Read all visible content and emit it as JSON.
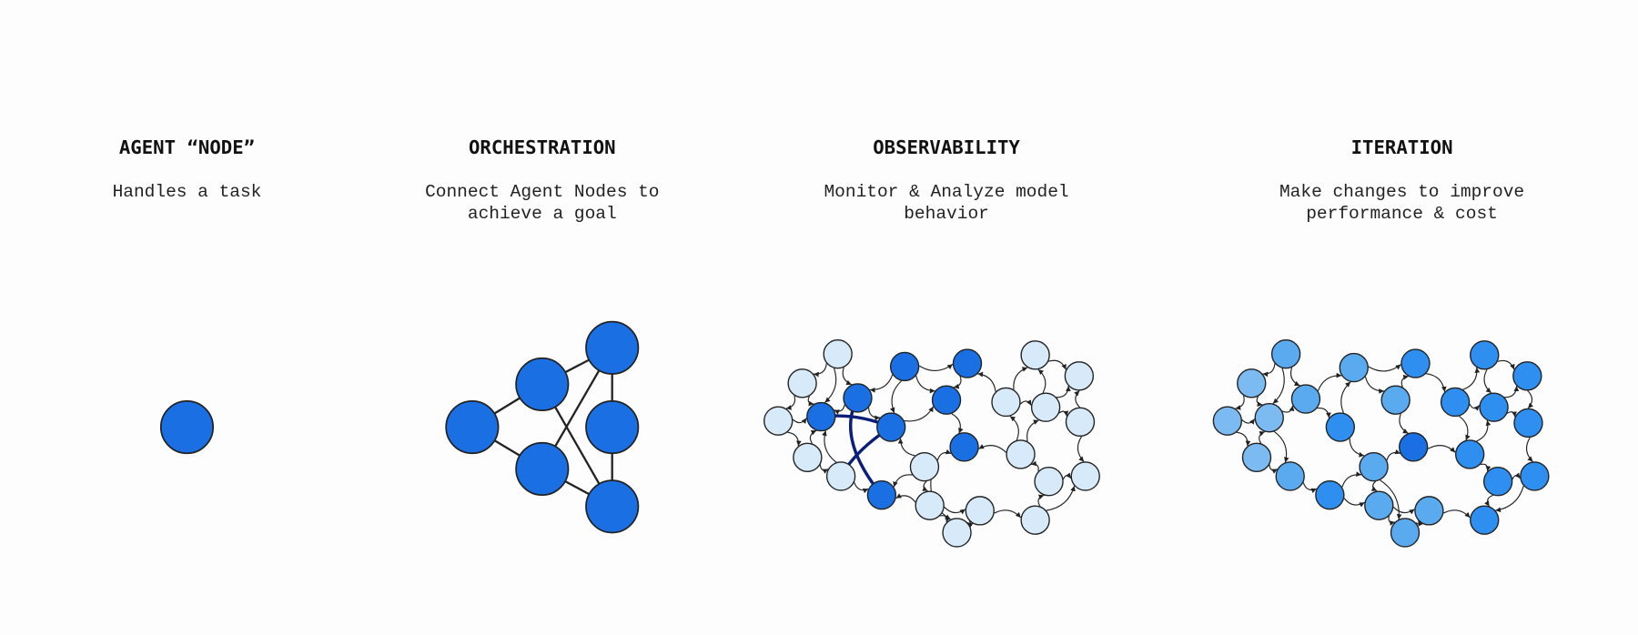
{
  "panels": [
    {
      "title": "AGENT “NODE”",
      "description": [
        "Handles a task"
      ]
    },
    {
      "title": "ORCHESTRATION",
      "description": [
        "Connect Agent Nodes to",
        "achieve a goal"
      ]
    },
    {
      "title": "OBSERVABILITY",
      "description": [
        "Monitor & Analyze model",
        "behavior"
      ]
    },
    {
      "title": "ITERATION",
      "description": [
        "Make changes to improve",
        "performance & cost"
      ]
    }
  ]
}
